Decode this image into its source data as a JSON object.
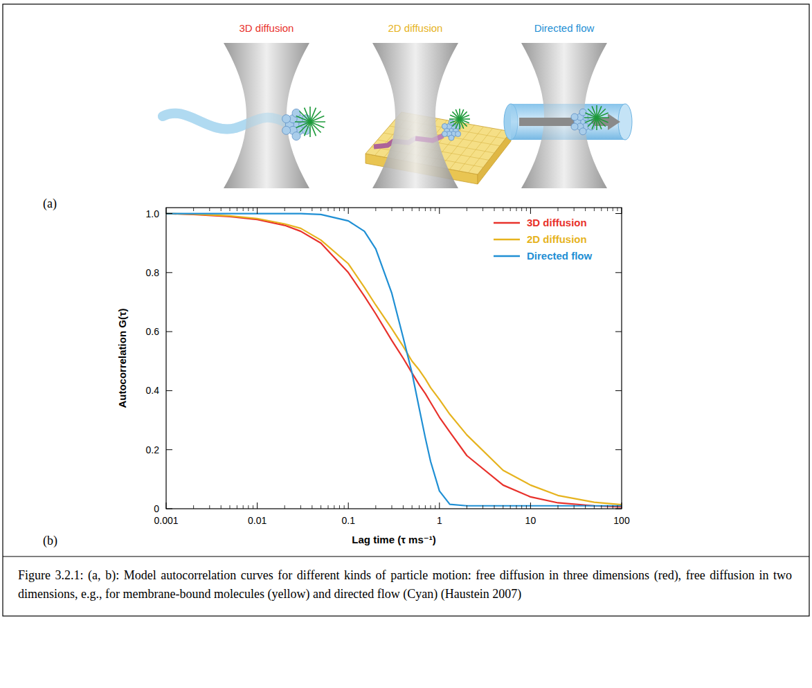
{
  "panel_labels": [
    "(a)",
    "(b)"
  ],
  "illustration": {
    "titles": [
      "3D diffusion",
      "2D diffusion",
      "Directed flow"
    ]
  },
  "chart_data": {
    "type": "line",
    "y_label": "Autocorrelation G(τ)",
    "x_label": "Lag time (τ ms⁻¹)",
    "x": [
      0.001,
      0.002,
      0.005,
      0.01,
      0.02,
      0.03,
      0.05,
      0.1,
      0.15,
      0.2,
      0.3,
      0.4,
      0.5,
      0.6,
      0.7,
      0.8,
      1,
      1.3,
      2,
      5,
      10,
      20,
      50,
      100
    ],
    "series": [
      {
        "name": "3D diffusion",
        "color": "#e8312b",
        "values": [
          1.0,
          0.997,
          0.99,
          0.98,
          0.96,
          0.94,
          0.9,
          0.8,
          0.72,
          0.66,
          0.57,
          0.51,
          0.46,
          0.42,
          0.39,
          0.36,
          0.31,
          0.26,
          0.18,
          0.08,
          0.04,
          0.02,
          0.01,
          0.006
        ]
      },
      {
        "name": "2D diffusion",
        "color": "#e6b31e",
        "values": [
          1.0,
          0.998,
          0.992,
          0.983,
          0.965,
          0.95,
          0.91,
          0.83,
          0.75,
          0.69,
          0.61,
          0.55,
          0.5,
          0.47,
          0.44,
          0.41,
          0.37,
          0.32,
          0.25,
          0.13,
          0.08,
          0.045,
          0.022,
          0.014
        ]
      },
      {
        "name": "Directed flow",
        "color": "#1f8fd4",
        "values": [
          1.0,
          1.0,
          1.0,
          1.0,
          1.0,
          1.0,
          0.997,
          0.975,
          0.94,
          0.88,
          0.73,
          0.58,
          0.46,
          0.34,
          0.24,
          0.16,
          0.06,
          0.015,
          0.01,
          0.01,
          0.01,
          0.01,
          0.01,
          0.01
        ]
      }
    ],
    "xlim": [
      0.001,
      100
    ],
    "ylim": [
      0,
      1.02
    ],
    "xticks": [
      0.001,
      0.01,
      0.1,
      1,
      10,
      100
    ],
    "yticks": [
      0,
      0.2,
      0.4,
      0.6,
      0.8,
      {
        "value": 1,
        "label": "1.0"
      }
    ],
    "log": "x",
    "grid": false,
    "legend": "upper right"
  },
  "caption": "Figure 3.2.1: (a, b): Model autocorrelation curves for different kinds of particle motion: free diffusion in three dimensions (red), free diffusion in two dimensions, e.g., for membrane-bound molecules (yellow) and directed flow (Cyan) (Haustein 2007)"
}
